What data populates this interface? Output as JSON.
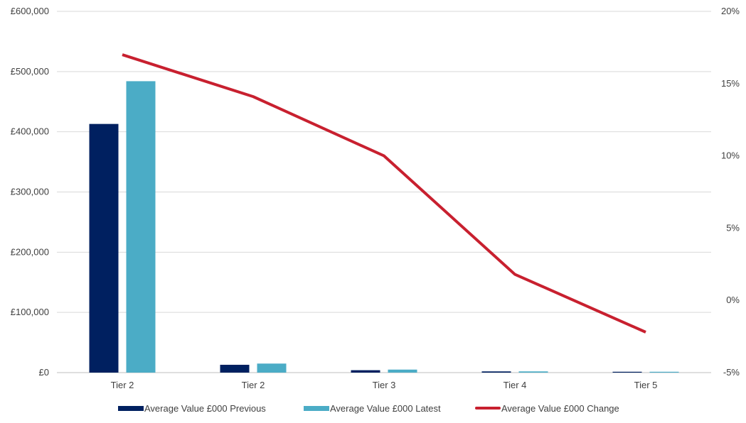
{
  "chart_data": {
    "type": "bar",
    "categories": [
      "Tier 2",
      "Tier 2",
      "Tier 3",
      "Tier 4",
      "Tier 5"
    ],
    "series": [
      {
        "name": "Average Value £000 Previous",
        "kind": "bar",
        "axis": "left",
        "color": "#002060",
        "values": [
          413000,
          13000,
          4000,
          2000,
          1000
        ]
      },
      {
        "name": "Average Value £000 Latest",
        "kind": "bar",
        "axis": "left",
        "color": "#4BACC6",
        "values": [
          484000,
          15000,
          5000,
          2000,
          1000
        ]
      },
      {
        "name": "Average Value £000 Change",
        "kind": "line",
        "axis": "right",
        "color": "#C8202F",
        "values": [
          17.0,
          14.1,
          10.0,
          1.8,
          -2.2
        ]
      }
    ],
    "y_left": {
      "ylim": [
        0,
        600000
      ],
      "ticks": [
        0,
        100000,
        200000,
        300000,
        400000,
        500000,
        600000
      ],
      "tick_labels": [
        "£0",
        "£100,000",
        "£200,000",
        "£300,000",
        "£400,000",
        "£500,000",
        "£600,000"
      ]
    },
    "y_right": {
      "ylim": [
        -5,
        20
      ],
      "ticks": [
        -5,
        0,
        5,
        10,
        15,
        20
      ],
      "tick_labels": [
        "-5%",
        "0%",
        "5%",
        "10%",
        "15%",
        "20%"
      ]
    },
    "grid": true,
    "legend_position": "bottom",
    "title": "",
    "xlabel": "",
    "ylabel": ""
  }
}
